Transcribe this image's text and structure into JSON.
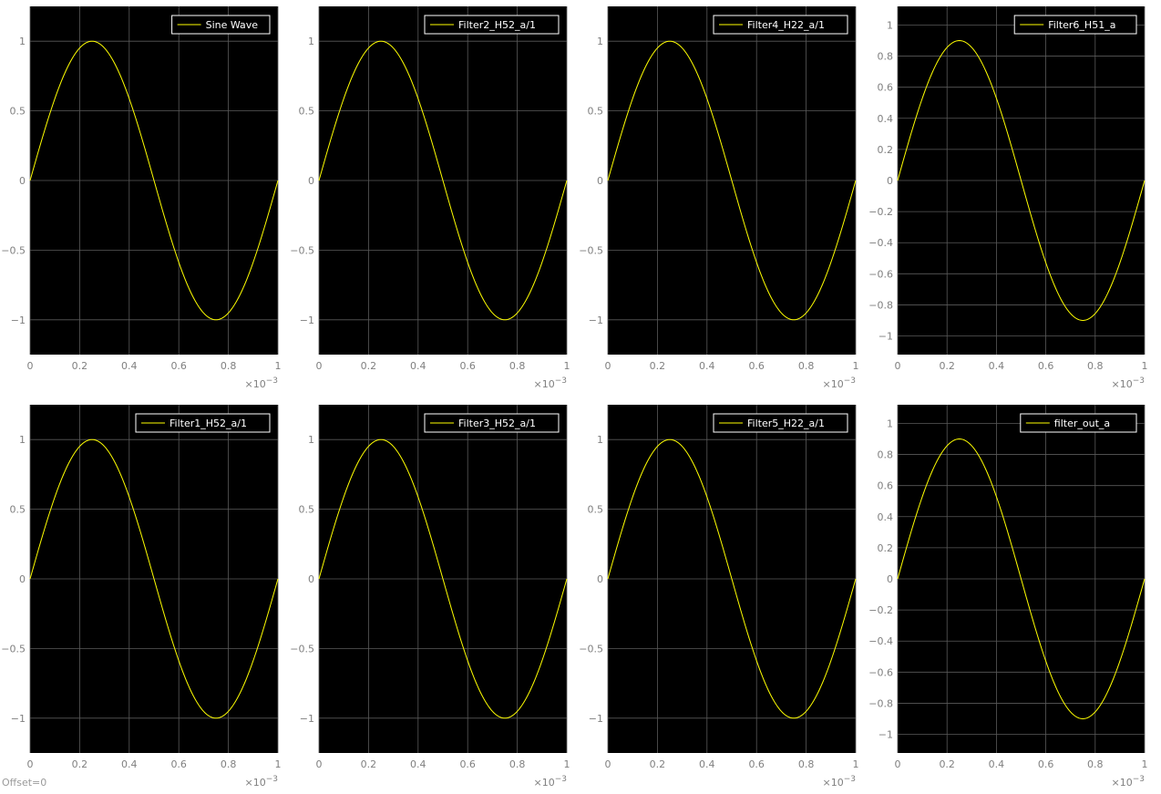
{
  "offset_label": "Offset=0",
  "colors": {
    "plot_background": "#000000",
    "grid": "#5a5a5a",
    "trace": "#ffff00",
    "tick_text": "#808080",
    "legend_text": "#ffffff",
    "legend_border": "#ffffff"
  },
  "chart_data": [
    {
      "type": "line",
      "legend": "Sine Wave",
      "legend_position": "top-right",
      "grid": true,
      "xlim": [
        0,
        1
      ],
      "ylim": [
        -1.25,
        1.25
      ],
      "x_ticks": [
        0,
        0.2,
        0.4,
        0.6,
        0.8,
        1
      ],
      "x_tick_labels": [
        "0",
        "0.2",
        "0.4",
        "0.6",
        "0.8",
        "1"
      ],
      "y_ticks": [
        -1,
        -0.5,
        0,
        0.5,
        1
      ],
      "y_tick_labels": [
        "-1",
        "-0.5",
        "0",
        "0.5",
        "1"
      ],
      "x_exponent_base": "×10",
      "x_exponent": "-3",
      "series": [
        {
          "name": "Sine Wave",
          "amplitude": 1,
          "cycles": 1
        }
      ]
    },
    {
      "type": "line",
      "legend": "Filter2_H52_a/1",
      "legend_position": "top-right",
      "grid": true,
      "xlim": [
        0,
        1
      ],
      "ylim": [
        -1.25,
        1.25
      ],
      "x_ticks": [
        0,
        0.2,
        0.4,
        0.6,
        0.8,
        1
      ],
      "x_tick_labels": [
        "0",
        "0.2",
        "0.4",
        "0.6",
        "0.8",
        "1"
      ],
      "y_ticks": [
        -1,
        -0.5,
        0,
        0.5,
        1
      ],
      "y_tick_labels": [
        "-1",
        "-0.5",
        "0",
        "0.5",
        "1"
      ],
      "x_exponent_base": "×10",
      "x_exponent": "-3",
      "series": [
        {
          "name": "Filter2_H52_a/1",
          "amplitude": 1,
          "cycles": 1
        }
      ]
    },
    {
      "type": "line",
      "legend": "Filter4_H22_a/1",
      "legend_position": "top-right",
      "grid": true,
      "xlim": [
        0,
        1
      ],
      "ylim": [
        -1.25,
        1.25
      ],
      "x_ticks": [
        0,
        0.2,
        0.4,
        0.6,
        0.8,
        1
      ],
      "x_tick_labels": [
        "0",
        "0.2",
        "0.4",
        "0.6",
        "0.8",
        "1"
      ],
      "y_ticks": [
        -1,
        -0.5,
        0,
        0.5,
        1
      ],
      "y_tick_labels": [
        "-1",
        "-0.5",
        "0",
        "0.5",
        "1"
      ],
      "x_exponent_base": "×10",
      "x_exponent": "-3",
      "series": [
        {
          "name": "Filter4_H22_a/1",
          "amplitude": 1,
          "cycles": 1
        }
      ]
    },
    {
      "type": "line",
      "legend": "Filter6_H51_a",
      "legend_position": "top-right",
      "grid": true,
      "xlim": [
        0,
        1
      ],
      "ylim": [
        -1.12,
        1.12
      ],
      "x_ticks": [
        0,
        0.2,
        0.4,
        0.6,
        0.8,
        1
      ],
      "x_tick_labels": [
        "0",
        "0.2",
        "0.4",
        "0.6",
        "0.8",
        "1"
      ],
      "y_ticks": [
        -1,
        -0.8,
        -0.6,
        -0.4,
        -0.2,
        0,
        0.2,
        0.4,
        0.6,
        0.8,
        1
      ],
      "y_tick_labels": [
        "-1",
        "-0.8",
        "-0.6",
        "-0.4",
        "-0.2",
        "0",
        "0.2",
        "0.4",
        "0.6",
        "0.8",
        "1"
      ],
      "x_exponent_base": "×10",
      "x_exponent": "-3",
      "series": [
        {
          "name": "Filter6_H51_a",
          "amplitude": 0.9,
          "cycles": 1
        }
      ]
    },
    {
      "type": "line",
      "legend": "Filter1_H52_a/1",
      "legend_position": "top-right",
      "grid": true,
      "xlim": [
        0,
        1
      ],
      "ylim": [
        -1.25,
        1.25
      ],
      "x_ticks": [
        0,
        0.2,
        0.4,
        0.6,
        0.8,
        1
      ],
      "x_tick_labels": [
        "0",
        "0.2",
        "0.4",
        "0.6",
        "0.8",
        "1"
      ],
      "y_ticks": [
        -1,
        -0.5,
        0,
        0.5,
        1
      ],
      "y_tick_labels": [
        "-1",
        "-0.5",
        "0",
        "0.5",
        "1"
      ],
      "x_exponent_base": "×10",
      "x_exponent": "-3",
      "series": [
        {
          "name": "Filter1_H52_a/1",
          "amplitude": 1,
          "cycles": 1
        }
      ]
    },
    {
      "type": "line",
      "legend": "Filter3_H52_a/1",
      "legend_position": "top-right",
      "grid": true,
      "xlim": [
        0,
        1
      ],
      "ylim": [
        -1.25,
        1.25
      ],
      "x_ticks": [
        0,
        0.2,
        0.4,
        0.6,
        0.8,
        1
      ],
      "x_tick_labels": [
        "0",
        "0.2",
        "0.4",
        "0.6",
        "0.8",
        "1"
      ],
      "y_ticks": [
        -1,
        -0.5,
        0,
        0.5,
        1
      ],
      "y_tick_labels": [
        "-1",
        "-0.5",
        "0",
        "0.5",
        "1"
      ],
      "x_exponent_base": "×10",
      "x_exponent": "-3",
      "series": [
        {
          "name": "Filter3_H52_a/1",
          "amplitude": 1,
          "cycles": 1
        }
      ]
    },
    {
      "type": "line",
      "legend": "Filter5_H22_a/1",
      "legend_position": "top-right",
      "grid": true,
      "xlim": [
        0,
        1
      ],
      "ylim": [
        -1.25,
        1.25
      ],
      "x_ticks": [
        0,
        0.2,
        0.4,
        0.6,
        0.8,
        1
      ],
      "x_tick_labels": [
        "0",
        "0.2",
        "0.4",
        "0.6",
        "0.8",
        "1"
      ],
      "y_ticks": [
        -1,
        -0.5,
        0,
        0.5,
        1
      ],
      "y_tick_labels": [
        "-1",
        "-0.5",
        "0",
        "0.5",
        "1"
      ],
      "x_exponent_base": "×10",
      "x_exponent": "-3",
      "series": [
        {
          "name": "Filter5_H22_a/1",
          "amplitude": 1,
          "cycles": 1
        }
      ]
    },
    {
      "type": "line",
      "legend": "filter_out_a",
      "legend_position": "top-right",
      "grid": true,
      "xlim": [
        0,
        1
      ],
      "ylim": [
        -1.12,
        1.12
      ],
      "x_ticks": [
        0,
        0.2,
        0.4,
        0.6,
        0.8,
        1
      ],
      "x_tick_labels": [
        "0",
        "0.2",
        "0.4",
        "0.6",
        "0.8",
        "1"
      ],
      "y_ticks": [
        -1,
        -0.8,
        -0.6,
        -0.4,
        -0.2,
        0,
        0.2,
        0.4,
        0.6,
        0.8,
        1
      ],
      "y_tick_labels": [
        "-1",
        "-0.8",
        "-0.6",
        "-0.4",
        "-0.2",
        "0",
        "0.2",
        "0.4",
        "0.6",
        "0.8",
        "1"
      ],
      "x_exponent_base": "×10",
      "x_exponent": "-3",
      "series": [
        {
          "name": "filter_out_a",
          "amplitude": 0.9,
          "cycles": 1
        }
      ]
    }
  ]
}
